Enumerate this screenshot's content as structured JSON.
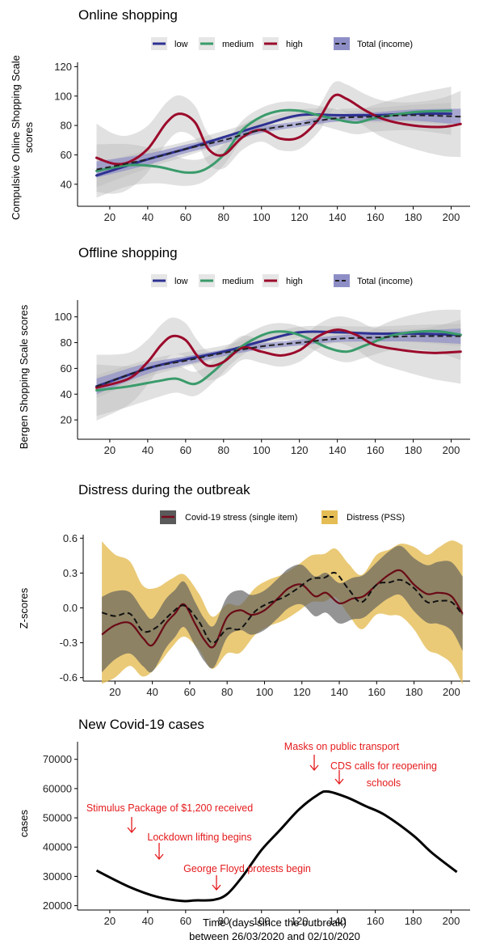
{
  "colors": {
    "low": "#2e3192",
    "medium": "#3a9b6b",
    "high": "#9b0a2b",
    "total": "#222222",
    "total_band": "#8e8ec7",
    "band": "#bdbdbd",
    "covid_band": "#5a5a5a",
    "pss_band": "#e5bd55",
    "annotation": "#e41a1c"
  },
  "chart_data": [
    {
      "type": "line",
      "title": "Online shopping",
      "ylabel": "Compulsive Online Shopping Scale scores",
      "xlim": [
        3,
        210
      ],
      "ylim": [
        25,
        123
      ],
      "xticks": [
        20,
        40,
        60,
        80,
        100,
        120,
        140,
        160,
        180,
        200
      ],
      "yticks": [
        40,
        60,
        80,
        100,
        120
      ],
      "legend": [
        "low",
        "medium",
        "high",
        "Total (income)"
      ],
      "series": [
        {
          "name": "low",
          "x": [
            13,
            40,
            60,
            80,
            100,
            120,
            140,
            160,
            180,
            200
          ],
          "y": [
            46,
            57,
            64,
            72,
            80,
            87,
            87,
            87,
            88,
            88
          ]
        },
        {
          "name": "medium",
          "x": [
            13,
            30,
            45,
            60,
            70,
            80,
            90,
            100,
            110,
            120,
            130,
            140,
            150,
            160,
            180,
            200
          ],
          "y": [
            49,
            53,
            52,
            48,
            50,
            60,
            77,
            86,
            90,
            90,
            87,
            84,
            82,
            85,
            89,
            90
          ]
        },
        {
          "name": "high",
          "x": [
            13,
            22,
            30,
            40,
            50,
            57,
            65,
            72,
            80,
            90,
            100,
            110,
            120,
            130,
            138,
            145,
            155,
            165,
            180,
            195,
            205
          ],
          "y": [
            58,
            54,
            55,
            64,
            82,
            88,
            82,
            64,
            60,
            72,
            77,
            71,
            72,
            84,
            100,
            98,
            90,
            84,
            80,
            79,
            81
          ]
        },
        {
          "name": "Total (income)",
          "x": [
            13,
            40,
            60,
            80,
            100,
            120,
            140,
            160,
            180,
            205
          ],
          "y": [
            50,
            57,
            64,
            70,
            77,
            81,
            85,
            86,
            87,
            86
          ]
        }
      ]
    },
    {
      "type": "line",
      "title": "Offline shopping",
      "ylabel": "Bergen Shopping Scale scores",
      "xlim": [
        3,
        210
      ],
      "ylim": [
        5,
        113
      ],
      "xticks": [
        20,
        40,
        60,
        80,
        100,
        120,
        140,
        160,
        180,
        200
      ],
      "yticks": [
        20,
        40,
        60,
        80,
        100
      ],
      "legend": [
        "low",
        "medium",
        "high",
        "Total (income)"
      ],
      "series": [
        {
          "name": "low",
          "x": [
            13,
            40,
            60,
            80,
            100,
            120,
            140,
            160,
            180,
            205
          ],
          "y": [
            46,
            60,
            67,
            73,
            81,
            88,
            88,
            87,
            87,
            86
          ]
        },
        {
          "name": "medium",
          "x": [
            13,
            30,
            45,
            55,
            65,
            75,
            85,
            95,
            105,
            115,
            125,
            135,
            145,
            155,
            170,
            190,
            205
          ],
          "y": [
            43,
            46,
            50,
            52,
            48,
            58,
            72,
            82,
            88,
            88,
            83,
            76,
            73,
            78,
            86,
            89,
            86
          ]
        },
        {
          "name": "high",
          "x": [
            13,
            30,
            40,
            47,
            53,
            60,
            66,
            72,
            80,
            90,
            100,
            110,
            120,
            130,
            140,
            150,
            160,
            175,
            190,
            205
          ],
          "y": [
            45,
            52,
            65,
            78,
            85,
            82,
            70,
            62,
            65,
            76,
            73,
            70,
            74,
            85,
            90,
            86,
            78,
            74,
            72,
            73
          ]
        },
        {
          "name": "Total (income)",
          "x": [
            13,
            40,
            60,
            80,
            100,
            120,
            140,
            160,
            180,
            205
          ],
          "y": [
            46,
            60,
            66,
            72,
            77,
            80,
            83,
            84,
            85,
            85
          ]
        }
      ]
    },
    {
      "type": "line",
      "title": "Distress during the outbreak",
      "ylabel": "Z-scores",
      "xlim": [
        3,
        210
      ],
      "ylim": [
        -0.63,
        0.63
      ],
      "xticks": [
        20,
        40,
        60,
        80,
        100,
        120,
        140,
        160,
        180,
        200
      ],
      "yticks": [
        -0.6,
        -0.3,
        0.0,
        0.3,
        0.6
      ],
      "ytick_labels": [
        "-0.6",
        "-0.3",
        "0.0",
        "0.3",
        "0.6"
      ],
      "legend": [
        "Covid-19 stress (single item)",
        "Distress (PSS)"
      ],
      "series": [
        {
          "name": "Covid-19 stress (single item)",
          "x": [
            13,
            20,
            28,
            35,
            40,
            47,
            52,
            57,
            63,
            68,
            73,
            80,
            87,
            93,
            100,
            107,
            113,
            120,
            127,
            133,
            140,
            147,
            153,
            160,
            167,
            173,
            180,
            187,
            193,
            200,
            206
          ],
          "y": [
            -0.23,
            -0.15,
            -0.13,
            -0.26,
            -0.32,
            -0.14,
            -0.05,
            0.03,
            -0.14,
            -0.28,
            -0.33,
            -0.08,
            -0.02,
            -0.06,
            -0.02,
            0.08,
            0.17,
            0.2,
            0.1,
            0.13,
            0.04,
            0.08,
            0.1,
            0.2,
            0.29,
            0.32,
            0.2,
            0.12,
            0.13,
            0.1,
            -0.05
          ]
        },
        {
          "name": "Distress (PSS)",
          "x": [
            13,
            20,
            28,
            35,
            42,
            50,
            57,
            65,
            72,
            80,
            87,
            95,
            102,
            110,
            118,
            125,
            132,
            138,
            145,
            152,
            160,
            167,
            173,
            180,
            187,
            193,
            200,
            206
          ],
          "y": [
            -0.04,
            -0.07,
            -0.05,
            -0.2,
            -0.17,
            -0.05,
            0.02,
            -0.12,
            -0.3,
            -0.18,
            -0.18,
            -0.03,
            0.04,
            0.09,
            0.17,
            0.25,
            0.26,
            0.3,
            0.16,
            0.05,
            0.2,
            0.22,
            0.24,
            0.17,
            0.05,
            0.06,
            0.05,
            -0.06
          ]
        }
      ]
    },
    {
      "type": "line",
      "title": "New Covid-19 cases",
      "ylabel": "cases",
      "xlabel": "Time (days since the outbreak)",
      "xlabel2": "between 26/03/2020 and 02/10/2020",
      "xlim": [
        3,
        210
      ],
      "ylim": [
        18500,
        76000
      ],
      "xticks": [
        20,
        40,
        60,
        80,
        100,
        120,
        140,
        160,
        180,
        200
      ],
      "yticks": [
        20000,
        30000,
        40000,
        50000,
        60000,
        70000
      ],
      "series": [
        {
          "x": [
            13,
            30,
            45,
            58,
            65,
            75,
            82,
            90,
            100,
            110,
            120,
            130,
            135,
            145,
            155,
            165,
            180,
            190,
            203
          ],
          "y": [
            32000,
            26500,
            23000,
            21600,
            21800,
            22000,
            24000,
            30000,
            39000,
            46000,
            53000,
            58000,
            59000,
            57000,
            54000,
            51000,
            44000,
            38000,
            31500
          ]
        }
      ],
      "annotations": [
        {
          "text": "Masks on public transport",
          "x": 125
        },
        {
          "text": "CDS calls for reopening",
          "x": 137
        },
        {
          "text": "schools",
          "x": 137
        },
        {
          "text": "Stimulus Package of $1,200 received",
          "x": 30
        },
        {
          "text": "Lockdown lifting begins",
          "x": 45
        },
        {
          "text": "George Floyd protests begin",
          "x": 75
        }
      ]
    }
  ]
}
